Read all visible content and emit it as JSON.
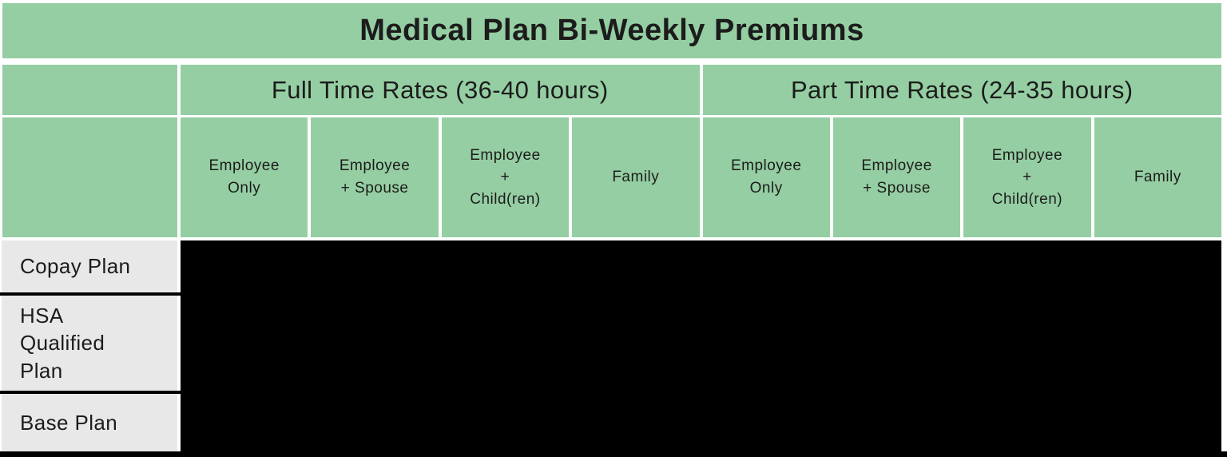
{
  "table": {
    "title": "Medical Plan Bi-Weekly Premiums",
    "column_groups": [
      {
        "label": "Full Time Rates (36-40 hours)",
        "sub_columns": [
          "Employee\nOnly",
          "Employee\n+ Spouse",
          "Employee\n+\nChild(ren)",
          "Family"
        ]
      },
      {
        "label": "Part Time Rates (24-35 hours)",
        "sub_columns": [
          "Employee\nOnly",
          "Employee\n+ Spouse",
          "Employee\n+\nChild(ren)",
          "Family"
        ]
      }
    ],
    "rows": [
      "Copay Plan",
      "HSA\nQualified\nPlan",
      "Base Plan"
    ]
  },
  "colors": {
    "header_green": "#95cea2",
    "row_header_gray": "#e8e8e8",
    "redacted_black": "#000000",
    "text_dark": "#1c1c1c",
    "page_bg": "#ffffff"
  }
}
